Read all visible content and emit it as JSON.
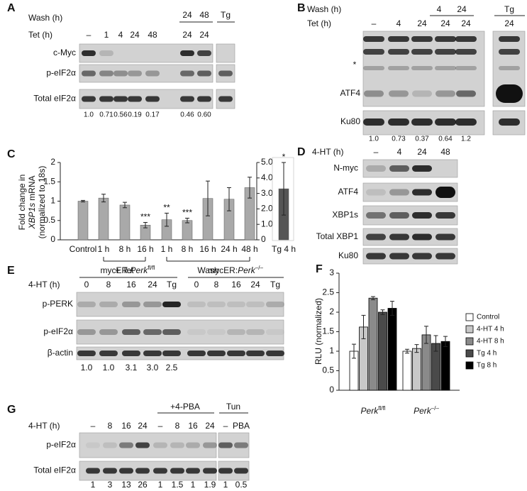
{
  "panels": {
    "A": {
      "label": "A",
      "wash_label": "Wash (h)",
      "wash": [
        "24",
        "48",
        "Tg"
      ],
      "tet_label": "Tet (h)",
      "tet": [
        "–",
        "1",
        "4",
        "24",
        "48",
        "24",
        "24"
      ],
      "rows": [
        "c-Myc",
        "p-eIF2α",
        "Total eIF2α"
      ],
      "quant": [
        "1.0",
        "0.71",
        "0.56",
        "0.19",
        "0.17",
        "0.46",
        "0.60"
      ]
    },
    "B": {
      "label": "B",
      "wash_label": "Wash (h)",
      "wash": [
        "4",
        "24",
        "Tg"
      ],
      "tet_label": "Tet (h)",
      "tet": [
        "–",
        "4",
        "24",
        "24",
        "24",
        "24"
      ],
      "marker": "*",
      "rows": [
        "ATF4",
        "Ku80"
      ],
      "quant": [
        "1.0",
        "0.73",
        "0.37",
        "0.64",
        "1.2"
      ]
    },
    "D": {
      "label": "D",
      "lane_label": "4-HT (h)",
      "lanes": [
        "–",
        "4",
        "24",
        "48"
      ],
      "rows": [
        "N-myc",
        "ATF4",
        "XBP1s",
        "Total XBP1",
        "Ku80"
      ]
    },
    "E": {
      "label": "E",
      "groups": [
        {
          "prefix": "mycER:",
          "gene": "Perk",
          "sup": "fl/fl"
        },
        {
          "prefix": "mycER:",
          "gene": "Perk",
          "sup": "–/–"
        }
      ],
      "lane_label": "4-HT (h)",
      "lanes": [
        "0",
        "8",
        "16",
        "24",
        "Tg",
        "0",
        "8",
        "16",
        "24",
        "Tg"
      ],
      "rows": [
        "p-PERK",
        "p-eIF2α",
        "β-actin"
      ],
      "quant": [
        "1.0",
        "1.0",
        "3.1",
        "3.0",
        "2.5"
      ]
    },
    "G": {
      "label": "G",
      "groups": [
        "+4-PBA",
        "Tun"
      ],
      "lane_label": "4-HT (h)",
      "lanes": [
        "–",
        "8",
        "16",
        "24",
        "–",
        "8",
        "16",
        "24",
        "–",
        "PBA"
      ],
      "rows": [
        "p-eIF2α",
        "Total eIF2α"
      ],
      "quant": [
        "1",
        "3",
        "13",
        "26",
        "1",
        "1.5",
        "1",
        "1.9",
        "1",
        "0.5"
      ]
    }
  },
  "chart_data": [
    {
      "panel": "C",
      "type": "bar",
      "ylabel": [
        "Fold change in",
        "XBP1s",
        "mRNA",
        "(normalized to 18s)"
      ],
      "categories": [
        "Control",
        "1 h",
        "8 h",
        "16 h",
        "1 h",
        "8 h",
        "16 h",
        "24 h",
        "48 h",
        "Tg 4 h"
      ],
      "groups": [
        "+ Tet",
        "Wash"
      ],
      "series": [
        {
          "color": "#a9a9a9",
          "values": [
            1.0,
            1.08,
            0.9,
            0.38,
            0.52,
            0.5,
            1.07,
            1.05,
            1.35,
            null
          ],
          "errors": [
            0.02,
            0.1,
            0.07,
            0.07,
            0.17,
            0.06,
            0.45,
            0.3,
            0.27,
            null
          ],
          "annotations": [
            null,
            null,
            null,
            "***",
            "**",
            "***",
            null,
            null,
            null,
            null
          ]
        },
        {
          "color": "#555555",
          "axis": "y2",
          "values": [
            null,
            null,
            null,
            null,
            null,
            null,
            null,
            null,
            null,
            3.3
          ],
          "errors": [
            null,
            null,
            null,
            null,
            null,
            null,
            null,
            null,
            null,
            1.7
          ],
          "annotations": [
            null,
            null,
            null,
            null,
            null,
            null,
            null,
            null,
            null,
            "*"
          ]
        }
      ],
      "ylim": [
        0,
        2
      ],
      "yticks": [
        0,
        0.5,
        1,
        1.5,
        2
      ],
      "y2lim": [
        0,
        5
      ],
      "y2ticks": [
        0,
        {
          "value": 1,
          "label": "1.0"
        },
        {
          "value": 2,
          "label": "2.0"
        },
        {
          "value": 3,
          "label": "3.0"
        },
        {
          "value": 4,
          "label": "4.0"
        },
        {
          "value": 5,
          "label": "5.0"
        }
      ]
    },
    {
      "panel": "F",
      "type": "grouped-bar",
      "ylabel": "RLU (normalized)",
      "categories": [
        "Perk",
        "Perk"
      ],
      "category_superscripts": [
        "fl/fl",
        "–/–"
      ],
      "series": [
        {
          "name": "Control",
          "color": "#ffffff",
          "values": [
            1.0,
            1.0
          ],
          "errors": [
            0.18,
            0.05
          ]
        },
        {
          "name": "4-HT 4 h",
          "color": "#c8c8c8",
          "values": [
            1.62,
            1.07
          ],
          "errors": [
            0.3,
            0.1
          ]
        },
        {
          "name": "4-HT 8 h",
          "color": "#8a8a8a",
          "values": [
            2.36,
            1.42
          ],
          "errors": [
            0.04,
            0.22
          ]
        },
        {
          "name": "Tg 4 h",
          "color": "#4a4a4a",
          "values": [
            2.0,
            1.2
          ],
          "errors": [
            0.06,
            0.2
          ]
        },
        {
          "name": "Tg 8 h",
          "color": "#000000",
          "values": [
            2.1,
            1.25
          ],
          "errors": [
            0.18,
            0.13
          ]
        }
      ],
      "ylim": [
        0,
        3
      ],
      "yticks": [
        0,
        0.5,
        1,
        1.5,
        2,
        2.5,
        3
      ],
      "legend": "right"
    }
  ]
}
